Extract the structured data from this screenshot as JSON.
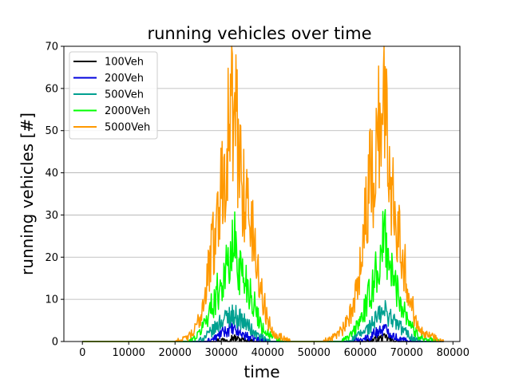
{
  "chart_data": {
    "type": "line",
    "title": "running vehicles over time",
    "xlabel": "time",
    "ylabel": "running vehicles [#]",
    "xlim": [
      -4000,
      81500
    ],
    "ylim": [
      0,
      70
    ],
    "xticks": [
      0,
      10000,
      20000,
      30000,
      40000,
      50000,
      60000,
      70000,
      80000
    ],
    "yticks": [
      0,
      10,
      20,
      30,
      40,
      50,
      60,
      70
    ],
    "grid": "horizontal",
    "legend_position": "top-left",
    "series": [
      {
        "name": "100Veh",
        "color": "#000000",
        "x": [
          0,
          20000,
          28000,
          30000,
          31500,
          32500,
          33500,
          35000,
          37000,
          42000,
          58000,
          61000,
          63000,
          64500,
          65500,
          66500,
          68000,
          73000,
          78000
        ],
        "y": [
          0,
          0,
          0,
          0.3,
          0.6,
          1,
          0.6,
          0.3,
          0,
          0,
          0,
          0,
          0.4,
          0.8,
          1,
          0.4,
          0,
          0,
          0
        ]
      },
      {
        "name": "200Veh",
        "color": "#0000dd",
        "x": [
          0,
          20000,
          27000,
          29000,
          30000,
          31000,
          32000,
          33000,
          34000,
          35000,
          36000,
          37500,
          40000,
          58000,
          60000,
          62000,
          63000,
          64000,
          65000,
          66000,
          67000,
          68500,
          71000,
          78000
        ],
        "y": [
          0,
          0,
          0,
          1,
          2,
          2.5,
          3,
          2.5,
          2,
          1.5,
          1,
          0.5,
          0,
          0,
          0.5,
          1,
          2,
          2.5,
          3,
          2.5,
          1.5,
          0.5,
          0,
          0
        ]
      },
      {
        "name": "500Veh",
        "color": "#00a090",
        "x": [
          0,
          20000,
          25000,
          27000,
          28500,
          30000,
          31000,
          32000,
          33000,
          34000,
          35000,
          36000,
          37000,
          38500,
          40500,
          57000,
          59000,
          61000,
          62500,
          63500,
          64500,
          65500,
          66500,
          67500,
          69000,
          71000,
          73000,
          78000
        ],
        "y": [
          0,
          0,
          0,
          1.5,
          3,
          5,
          5.5,
          6.5,
          6,
          5.5,
          4.5,
          3.5,
          2,
          1,
          0,
          0,
          1,
          2.5,
          4,
          5.5,
          6.5,
          7,
          6,
          4.5,
          3,
          1,
          0,
          0
        ]
      },
      {
        "name": "2000Veh",
        "color": "#00ff00",
        "x": [
          0,
          20000,
          23000,
          25000,
          27000,
          28500,
          30000,
          31000,
          32000,
          32800,
          33500,
          34500,
          35500,
          36500,
          37500,
          39000,
          41000,
          43000,
          56000,
          58000,
          60000,
          61500,
          62500,
          63500,
          64500,
          65200,
          66000,
          67000,
          68000,
          69000,
          70500,
          72000,
          74000,
          77000
        ],
        "y": [
          0,
          0,
          0,
          1.5,
          6,
          10,
          14,
          17,
          19,
          24,
          19,
          16,
          14,
          11,
          7,
          3,
          1,
          0,
          0,
          1.5,
          5,
          9,
          13,
          17,
          19,
          26,
          21,
          15,
          12,
          9,
          5,
          2,
          0.5,
          0
        ]
      },
      {
        "name": "5000Veh",
        "color": "#ff9900",
        "x": [
          0,
          20000,
          22000,
          24000,
          25500,
          27000,
          28000,
          29000,
          30000,
          31000,
          31800,
          32500,
          33200,
          34000,
          35000,
          36000,
          37000,
          38000,
          39000,
          40000,
          41500,
          43000,
          45000,
          52000,
          54000,
          56000,
          57500,
          58500,
          59500,
          60500,
          61500,
          62500,
          63500,
          64300,
          65000,
          65800,
          66500,
          67500,
          68500,
          69500,
          70500,
          72000,
          74000,
          76000,
          78000
        ],
        "y": [
          0,
          0,
          0.5,
          2,
          6,
          15,
          22,
          28,
          37,
          46,
          52,
          56,
          50,
          44,
          35,
          30,
          24,
          16,
          10,
          5,
          2,
          1,
          0,
          0,
          1,
          2.5,
          5,
          9,
          15,
          24,
          33,
          40,
          47,
          54,
          58,
          47,
          40,
          33,
          26,
          18,
          11,
          5,
          2,
          1,
          0
        ]
      }
    ]
  }
}
